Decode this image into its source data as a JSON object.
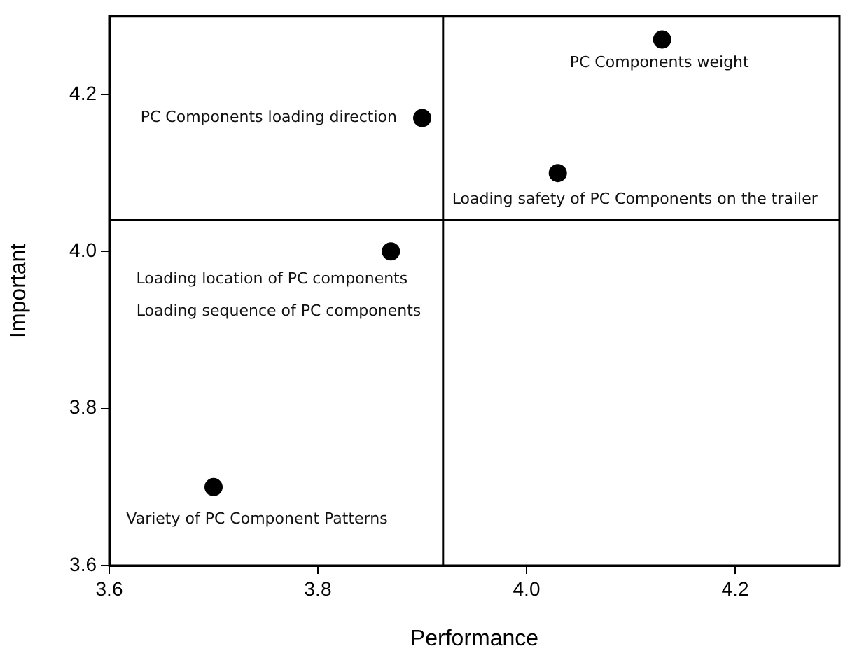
{
  "chart_data": {
    "type": "scatter",
    "xlabel": "Performance",
    "ylabel": "Important",
    "x": [
      4.13,
      3.9,
      4.03,
      3.87,
      3.7
    ],
    "series": [
      {
        "color": "#000000",
        "values": [
          4.27,
          4.17,
          4.1,
          4.0,
          3.7
        ]
      }
    ],
    "xlim": [
      3.6,
      4.3
    ],
    "ylim": [
      3.6,
      4.3
    ],
    "xticks": [
      3.6,
      3.8,
      {
        "value": 4,
        "label": "4.0"
      },
      4.2
    ],
    "yticks": [
      3.6,
      3.8,
      {
        "value": 4,
        "label": "4.0"
      },
      4.2
    ],
    "ref_lines": [
      {
        "axis": "x",
        "value": 3.92,
        "color": "#000000"
      },
      {
        "axis": "y",
        "value": 4.04,
        "color": "#000000"
      }
    ],
    "annotations": [
      {
        "text": "PC Components weight",
        "x": 4.13,
        "y": 4.27
      },
      {
        "text": "PC Components loading direction",
        "x": 3.9,
        "y": 4.17
      },
      {
        "text": "Loading safety of PC Components on the trailer",
        "x": 4.03,
        "y": 4.1
      },
      {
        "text": "Loading location of PC components",
        "x": 3.87,
        "y": 4.0
      },
      "Loading sequence of PC components",
      {
        "text": "Variety of PC Component Patterns",
        "x": 3.7,
        "y": 3.7
      }
    ],
    "grid": false,
    "legend": false,
    "marker": "circle"
  }
}
